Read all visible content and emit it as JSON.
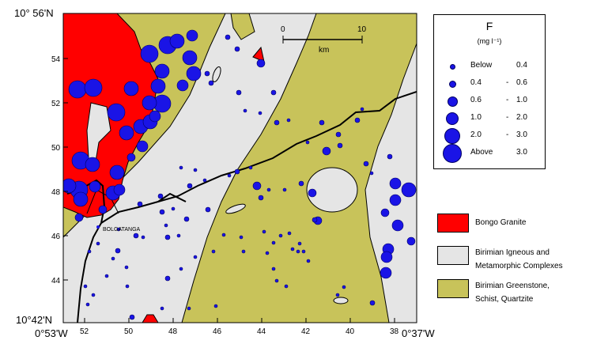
{
  "map": {
    "corner_labels": {
      "top_left_lat": "10° 56'N",
      "bottom_left_lat": "10°42'N",
      "bottom_left_lon": "0°53'W",
      "bottom_right_lon": "0°37'W"
    },
    "lat_ticks": [
      "54",
      "52",
      "50",
      "48",
      "46",
      "44"
    ],
    "lon_ticks": [
      "52",
      "50",
      "48",
      "46",
      "44",
      "42",
      "40",
      "38"
    ],
    "scale_bar": {
      "start": "0",
      "end": "10",
      "unit": "km"
    },
    "town": "BOLGATANGA",
    "colors": {
      "granite": "#ff0000",
      "igneous": "#e5e5e5",
      "greenstone": "#c8c35a",
      "point": "#1a14e6",
      "road": "#000000"
    }
  },
  "legend": {
    "title": "F",
    "unit": "(mg l⁻¹)",
    "classes": [
      {
        "from": "Below",
        "to": "0.4",
        "dash": ""
      },
      {
        "from": "0.4",
        "to": "0.6",
        "dash": "-"
      },
      {
        "from": "0.6",
        "to": "1.0",
        "dash": "-"
      },
      {
        "from": "1.0",
        "to": "2.0",
        "dash": "-"
      },
      {
        "from": "2.0",
        "to": "3.0",
        "dash": "-"
      },
      {
        "from": "Above",
        "to": "3.0",
        "dash": ""
      }
    ]
  },
  "geology_legend": [
    {
      "line1": "Bongo Granite",
      "line2": "",
      "color": "#ff0000"
    },
    {
      "line1": "Birimian Igneous and",
      "line2": "Metamorphic Complexes",
      "color": "#e5e5e5"
    },
    {
      "line1": "Birimian Greenstone,",
      "line2": "Schist, Quartzite",
      "color": "#c8c35a"
    }
  ]
}
